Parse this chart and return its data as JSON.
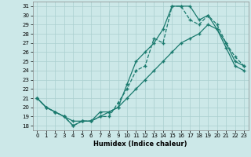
{
  "xlabel": "Humidex (Indice chaleur)",
  "background_color": "#cce8e8",
  "grid_color": "#aacfcf",
  "line_color": "#1a7a6e",
  "xlim": [
    -0.5,
    23.5
  ],
  "ylim": [
    17.5,
    31.5
  ],
  "xticks": [
    0,
    1,
    2,
    3,
    4,
    5,
    6,
    7,
    8,
    9,
    10,
    11,
    12,
    13,
    14,
    15,
    16,
    17,
    18,
    19,
    20,
    21,
    22,
    23
  ],
  "yticks": [
    18,
    19,
    20,
    21,
    22,
    23,
    24,
    25,
    26,
    27,
    28,
    29,
    30,
    31
  ],
  "series1_x": [
    0,
    1,
    2,
    3,
    4,
    5,
    6,
    7,
    8,
    9,
    10,
    11,
    12,
    13,
    14,
    15,
    16,
    17,
    18,
    19,
    20,
    21,
    22,
    23
  ],
  "series1_y": [
    21.0,
    20.0,
    19.5,
    19.0,
    18.5,
    18.5,
    18.5,
    19.5,
    19.5,
    20.0,
    21.0,
    22.0,
    23.0,
    24.0,
    25.0,
    26.0,
    27.0,
    27.5,
    28.0,
    29.0,
    28.5,
    27.0,
    25.0,
    24.5
  ],
  "series2_x": [
    0,
    1,
    2,
    3,
    4,
    5,
    6,
    7,
    8,
    9,
    10,
    11,
    12,
    13,
    14,
    15,
    16,
    17,
    18,
    19,
    20,
    21,
    22,
    23
  ],
  "series2_y": [
    21.0,
    20.0,
    19.5,
    19.0,
    18.0,
    18.5,
    18.5,
    19.0,
    19.0,
    20.5,
    22.0,
    24.0,
    24.5,
    27.5,
    27.0,
    31.0,
    31.0,
    29.5,
    29.0,
    30.0,
    29.0,
    27.0,
    25.5,
    24.5
  ],
  "series3_x": [
    0,
    1,
    2,
    3,
    4,
    5,
    6,
    7,
    8,
    9,
    10,
    11,
    12,
    13,
    14,
    15,
    16,
    17,
    18,
    19,
    20,
    21,
    22,
    23
  ],
  "series3_y": [
    21.0,
    20.0,
    19.5,
    19.0,
    18.0,
    18.5,
    18.5,
    19.0,
    19.5,
    20.0,
    22.5,
    25.0,
    26.0,
    27.0,
    28.5,
    31.0,
    31.0,
    31.0,
    29.5,
    30.0,
    28.5,
    26.5,
    24.5,
    24.0
  ]
}
